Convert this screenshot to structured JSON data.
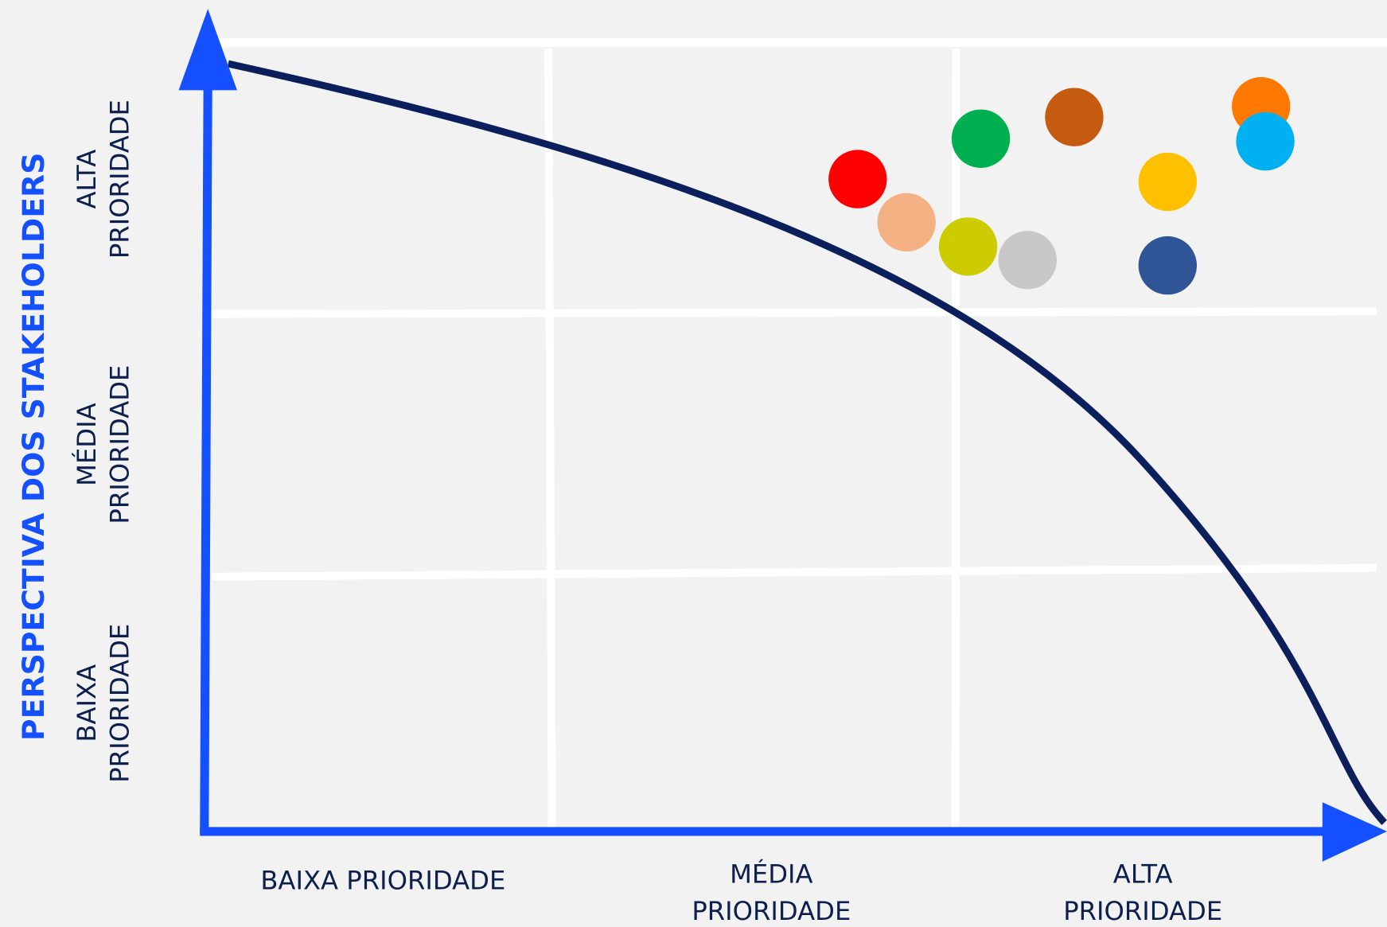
{
  "chart_data": {
    "type": "scatter",
    "y_title": "PERSPECTIVA DOS STAKEHOLDERS",
    "y_labels": [
      [
        "BAIXA",
        "PRIORIDADE"
      ],
      [
        "MÉDIA",
        "PRIORIDADE"
      ],
      [
        "ALTA",
        "PRIORIDADE"
      ]
    ],
    "x_labels": [
      [
        "BAIXA PRIORIDADE"
      ],
      [
        "MÉDIA",
        "PRIORIDADE"
      ],
      [
        "ALTA",
        "PRIORIDADE"
      ]
    ],
    "xlim": [
      0,
      3
    ],
    "ylim": [
      0,
      3
    ],
    "x": [
      1.76,
      1.88,
      2.03,
      2.17,
      2.06,
      2.28,
      2.5,
      2.5,
      2.72,
      2.73
    ],
    "y": [
      2.5,
      2.34,
      2.25,
      2.2,
      2.65,
      2.73,
      2.49,
      2.18,
      2.77,
      2.64
    ],
    "colors": [
      "#ff0000",
      "#f4b183",
      "#cccc00",
      "#c8c8c8",
      "#00b050",
      "#c55a11",
      "#ffc000",
      "#2f5597",
      "#ff7800",
      "#00b0f0"
    ]
  }
}
